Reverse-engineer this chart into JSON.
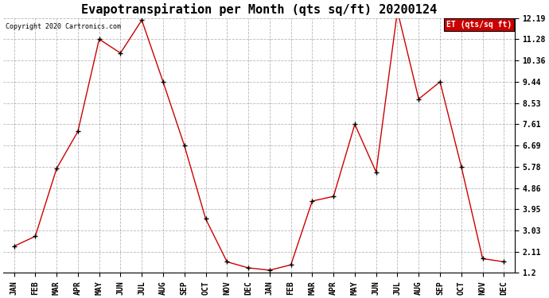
{
  "title": "Evapotranspiration per Month (qts sq/ft) 20200124",
  "copyright": "Copyright 2020 Cartronics.com",
  "legend_label": "ET (qts/sq ft)",
  "x_labels": [
    "JAN",
    "FEB",
    "MAR",
    "APR",
    "MAY",
    "JUN",
    "JUL",
    "AUG",
    "SEP",
    "OCT",
    "NOV",
    "DEC",
    "JAN",
    "FEB",
    "MAR",
    "APR",
    "MAY",
    "JUN",
    "JUL",
    "AUG",
    "SEP",
    "OCT",
    "NOV",
    "DEC"
  ],
  "y_values": [
    2.35,
    2.78,
    5.7,
    7.3,
    11.28,
    10.68,
    12.1,
    9.44,
    6.69,
    3.53,
    1.68,
    1.42,
    1.32,
    1.55,
    4.3,
    4.5,
    7.61,
    5.55,
    12.5,
    8.7,
    9.44,
    5.78,
    1.82,
    1.68
  ],
  "y_ticks": [
    1.2,
    2.11,
    3.03,
    3.95,
    4.86,
    5.78,
    6.69,
    7.61,
    8.53,
    9.44,
    10.36,
    11.28,
    12.19
  ],
  "y_min": 1.2,
  "y_max": 12.19,
  "line_color": "#cc0000",
  "marker_color": "#000000",
  "background_color": "#ffffff",
  "grid_color": "#888888",
  "title_fontsize": 11,
  "tick_fontsize": 7,
  "copyright_fontsize": 6,
  "legend_bg": "#cc0000",
  "legend_text_color": "#ffffff",
  "legend_fontsize": 7
}
